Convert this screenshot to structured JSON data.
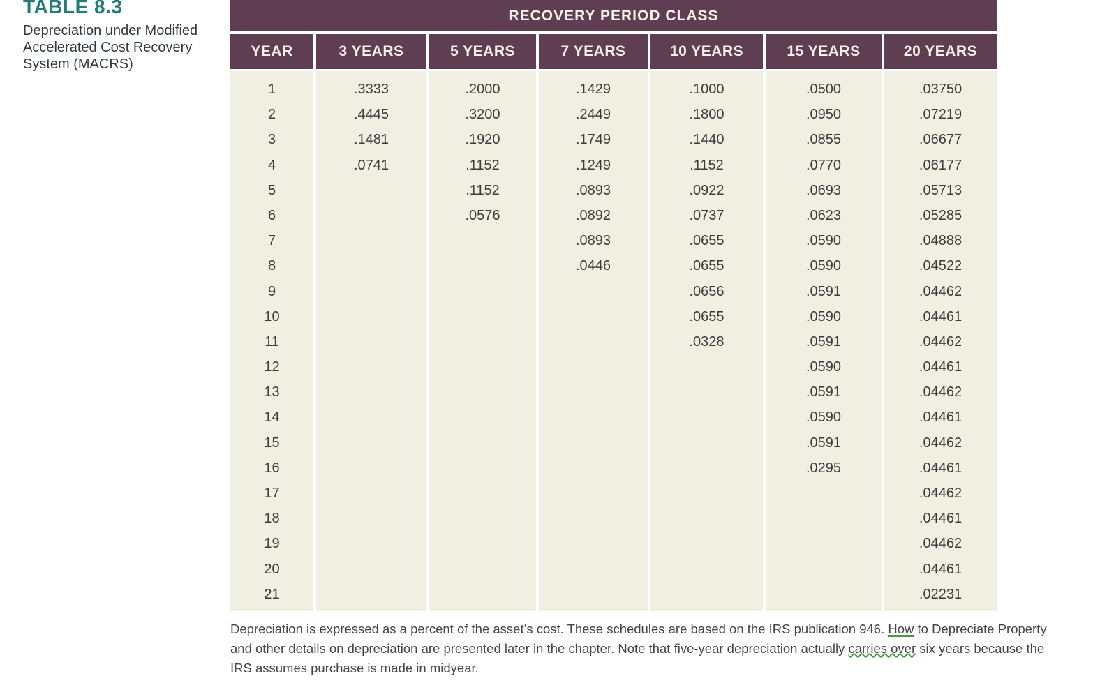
{
  "left_panel": {
    "table_label": "TABLE 8.3",
    "caption_lines": [
      "Depreciation under Modified",
      "Accelerated Cost Recovery",
      "System (MACRS)"
    ]
  },
  "table": {
    "band_title": "RECOVERY PERIOD CLASS",
    "row_count": 21,
    "columns": [
      {
        "header": "YEAR",
        "values": [
          "1",
          "2",
          "3",
          "4",
          "5",
          "6",
          "7",
          "8",
          "9",
          "10",
          "11",
          "12",
          "13",
          "14",
          "15",
          "16",
          "17",
          "18",
          "19",
          "20",
          "21"
        ]
      },
      {
        "header": "3 YEARS",
        "values": [
          ".3333",
          ".4445",
          ".1481",
          ".0741"
        ]
      },
      {
        "header": "5 YEARS",
        "values": [
          ".2000",
          ".3200",
          ".1920",
          ".1152",
          ".1152",
          ".0576"
        ]
      },
      {
        "header": "7 YEARS",
        "values": [
          ".1429",
          ".2449",
          ".1749",
          ".1249",
          ".0893",
          ".0892",
          ".0893",
          ".0446"
        ]
      },
      {
        "header": "10 YEARS",
        "values": [
          ".1000",
          ".1800",
          ".1440",
          ".1152",
          ".0922",
          ".0737",
          ".0655",
          ".0655",
          ".0656",
          ".0655",
          ".0328"
        ]
      },
      {
        "header": "15 YEARS",
        "values": [
          ".0500",
          ".0950",
          ".0855",
          ".0770",
          ".0693",
          ".0623",
          ".0590",
          ".0590",
          ".0591",
          ".0590",
          ".0591",
          ".0590",
          ".0591",
          ".0590",
          ".0591",
          ".0295"
        ]
      },
      {
        "header": "20 YEARS",
        "values": [
          ".03750",
          ".07219",
          ".06677",
          ".06177",
          ".05713",
          ".05285",
          ".04888",
          ".04522",
          ".04462",
          ".04461",
          ".04462",
          ".04461",
          ".04462",
          ".04461",
          ".04462",
          ".04461",
          ".04462",
          ".04461",
          ".04462",
          ".04461",
          ".02231"
        ]
      }
    ]
  },
  "footnote": {
    "lines": [
      [
        {
          "text": "Depreciation is expressed as a percent of the asset’s cost. These schedules are based on the IRS publication 946. "
        },
        {
          "text": "How",
          "mark": "underline"
        },
        {
          "text": " to Depreciate Property"
        }
      ],
      [
        {
          "text": "and other details on depreciation are presented later in the chapter. Note that five-year depreciation actually "
        },
        {
          "text": "carries over",
          "mark": "wavy"
        },
        {
          "text": " six years because the"
        }
      ],
      [
        {
          "text": "IRS assumes purchase is made in midyear."
        }
      ]
    ]
  },
  "colors": {
    "header_bg": "#5f3e52",
    "body_bg": "#f0efe2",
    "title_teal": "#257d75",
    "mark_green": "#3f9b3f"
  }
}
